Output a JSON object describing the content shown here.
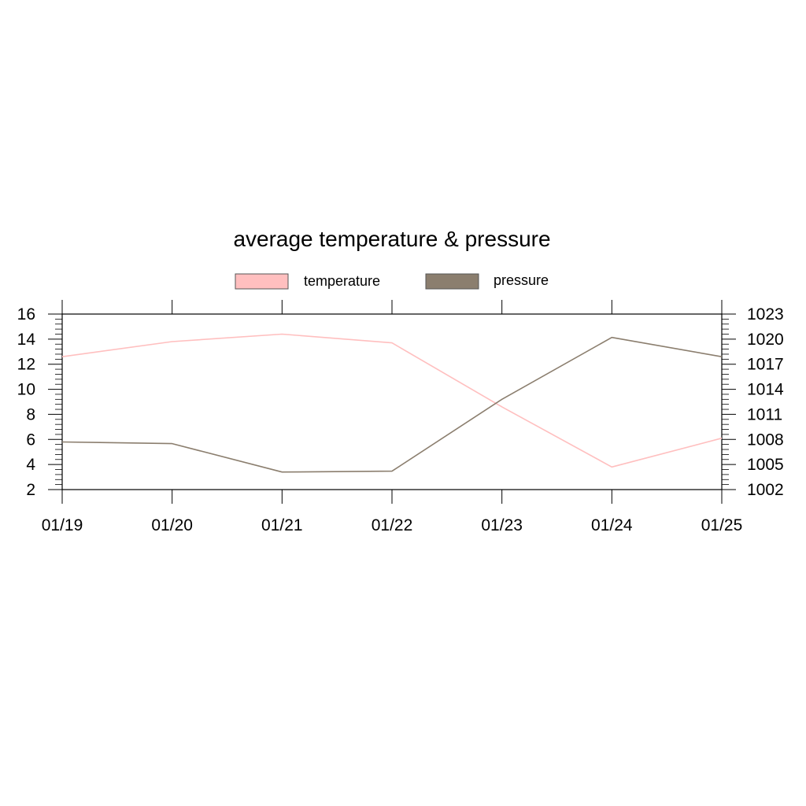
{
  "chart_data": {
    "type": "line",
    "title": "average temperature & pressure",
    "xlabel": "",
    "categories": [
      "01/19",
      "01/20",
      "01/21",
      "01/22",
      "01/23",
      "01/24",
      "01/25"
    ],
    "grid": false,
    "legend_position": "top-center",
    "left_axis": {
      "ylim": [
        2,
        16
      ],
      "ticks": [
        "2",
        "4",
        "6",
        "8",
        "10",
        "12",
        "14",
        "16"
      ],
      "tick_values": [
        2,
        4,
        6,
        8,
        10,
        12,
        14,
        16
      ]
    },
    "right_axis": {
      "ylim": [
        1002,
        1023
      ],
      "ticks": [
        "1002",
        "1005",
        "1008",
        "1011",
        "1014",
        "1017",
        "1020",
        "1023"
      ],
      "tick_values": [
        1002,
        1005,
        1008,
        1011,
        1014,
        1017,
        1020,
        1023
      ]
    },
    "series": [
      {
        "name": "temperature",
        "axis": "left",
        "color": "#ffbfbf",
        "values": [
          12.6,
          13.8,
          14.4,
          13.7,
          8.6,
          3.8,
          6.1
        ]
      },
      {
        "name": "pressure",
        "axis": "right",
        "color": "#8b7e6e",
        "values": [
          1007.7,
          1007.5,
          1004.1,
          1004.2,
          1012.8,
          1020.2,
          1017.9
        ]
      }
    ]
  }
}
